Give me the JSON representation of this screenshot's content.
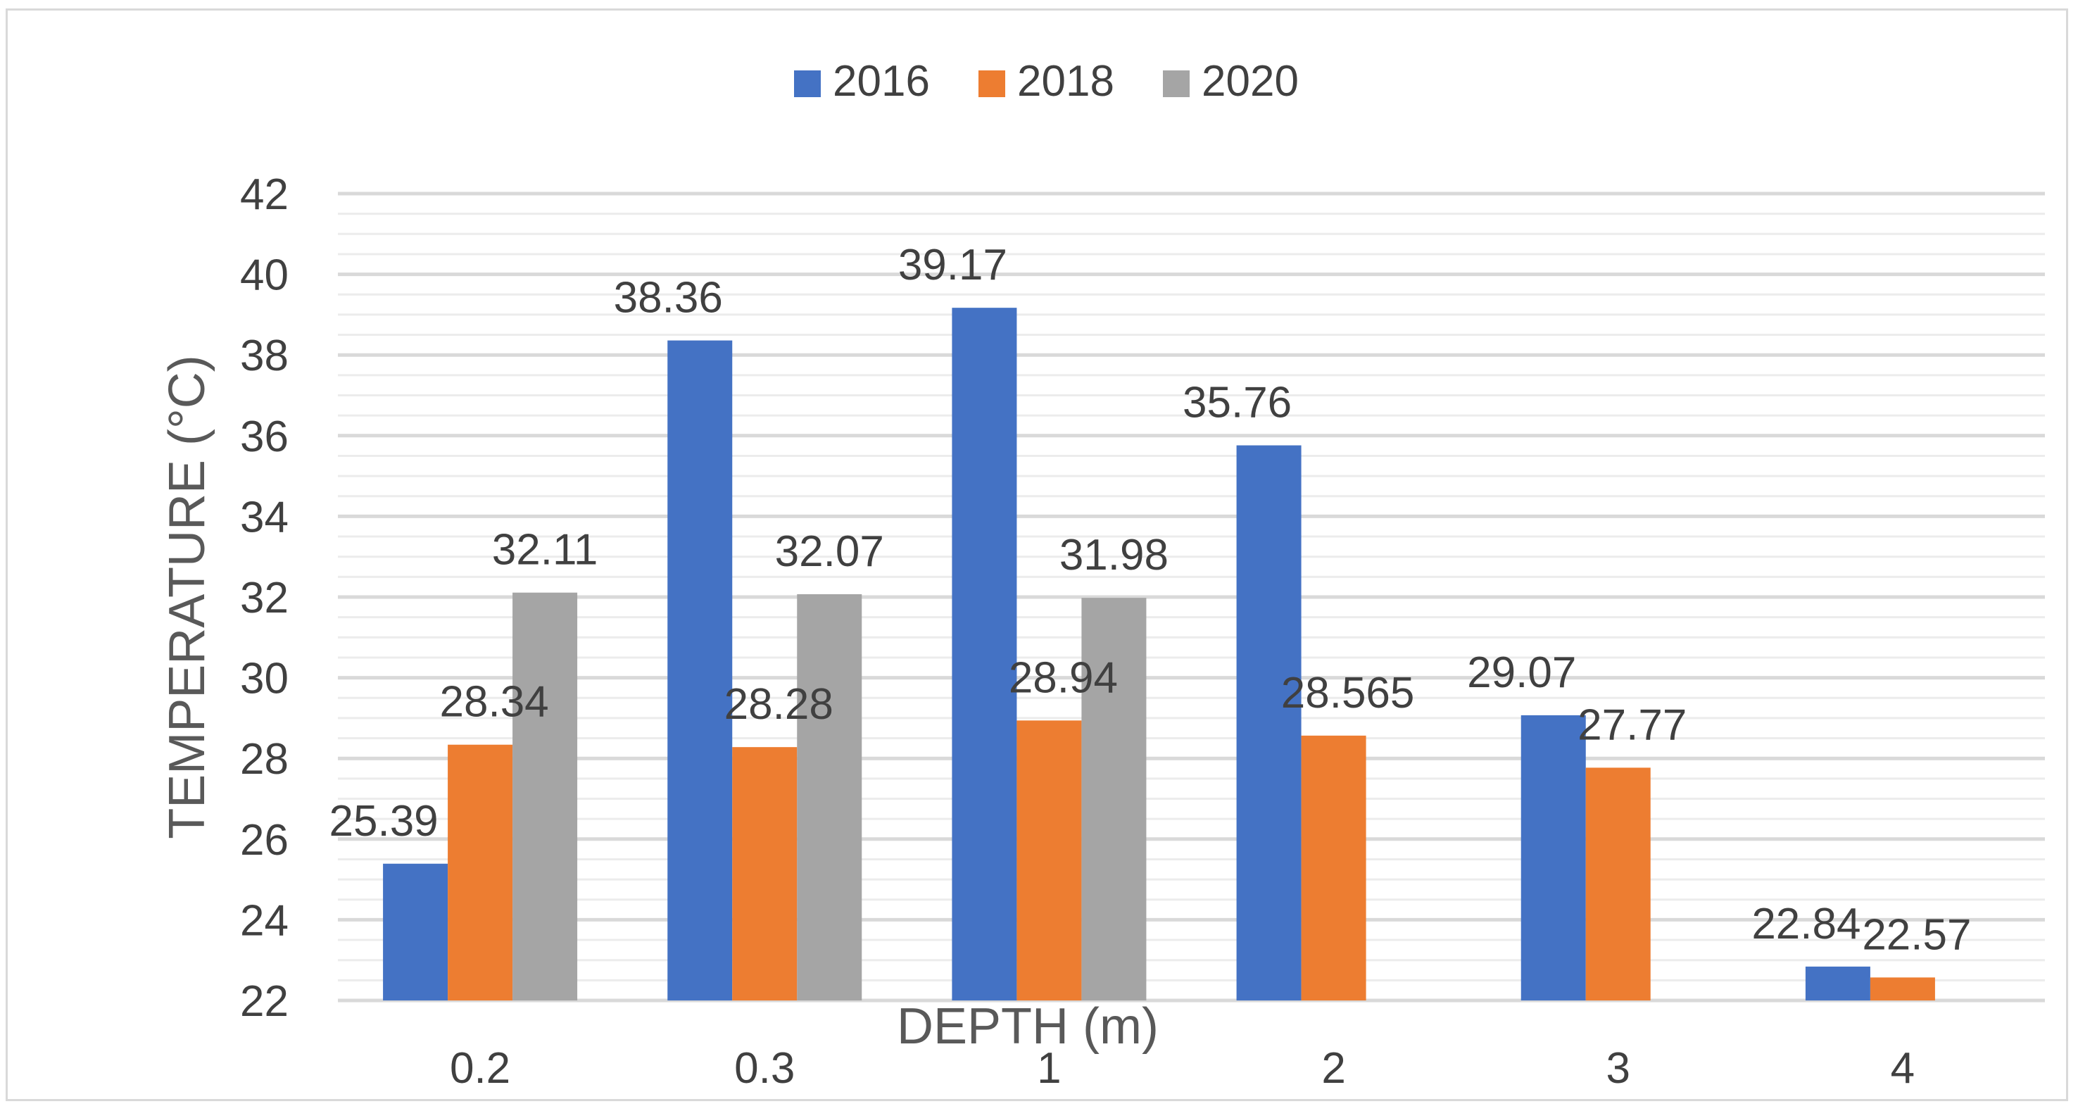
{
  "chart_data": {
    "type": "bar",
    "title": "",
    "xlabel": "DEPTH (m)",
    "ylabel": "TEMPERATURE (°C)",
    "categories": [
      "0.2",
      "0.3",
      "1",
      "2",
      "3",
      "4"
    ],
    "ylim": [
      22,
      42
    ],
    "yticks": [
      "22",
      "24",
      "26",
      "28",
      "30",
      "32",
      "34",
      "36",
      "38",
      "40",
      "42"
    ],
    "series": [
      {
        "name": "2016",
        "color": "#4472c4",
        "values": [
          25.39,
          38.36,
          39.17,
          35.76,
          29.07,
          22.84
        ],
        "labels": [
          "25.39",
          "38.36",
          "39.17",
          "35.76",
          "29.07",
          "22.84"
        ]
      },
      {
        "name": "2018",
        "color": "#ed7d31",
        "values": [
          28.34,
          28.28,
          28.94,
          28.565,
          27.77,
          22.57
        ],
        "labels": [
          "28.34",
          "28.28",
          "28.94",
          "28.565",
          "27.77",
          "22.57"
        ]
      },
      {
        "name": "2020",
        "color": "#a5a5a5",
        "values": [
          32.11,
          32.07,
          31.98,
          null,
          null,
          null
        ],
        "labels": [
          "32.11",
          "32.07",
          "31.98",
          "",
          "",
          ""
        ]
      }
    ],
    "legend": "top-center",
    "grid": true
  }
}
